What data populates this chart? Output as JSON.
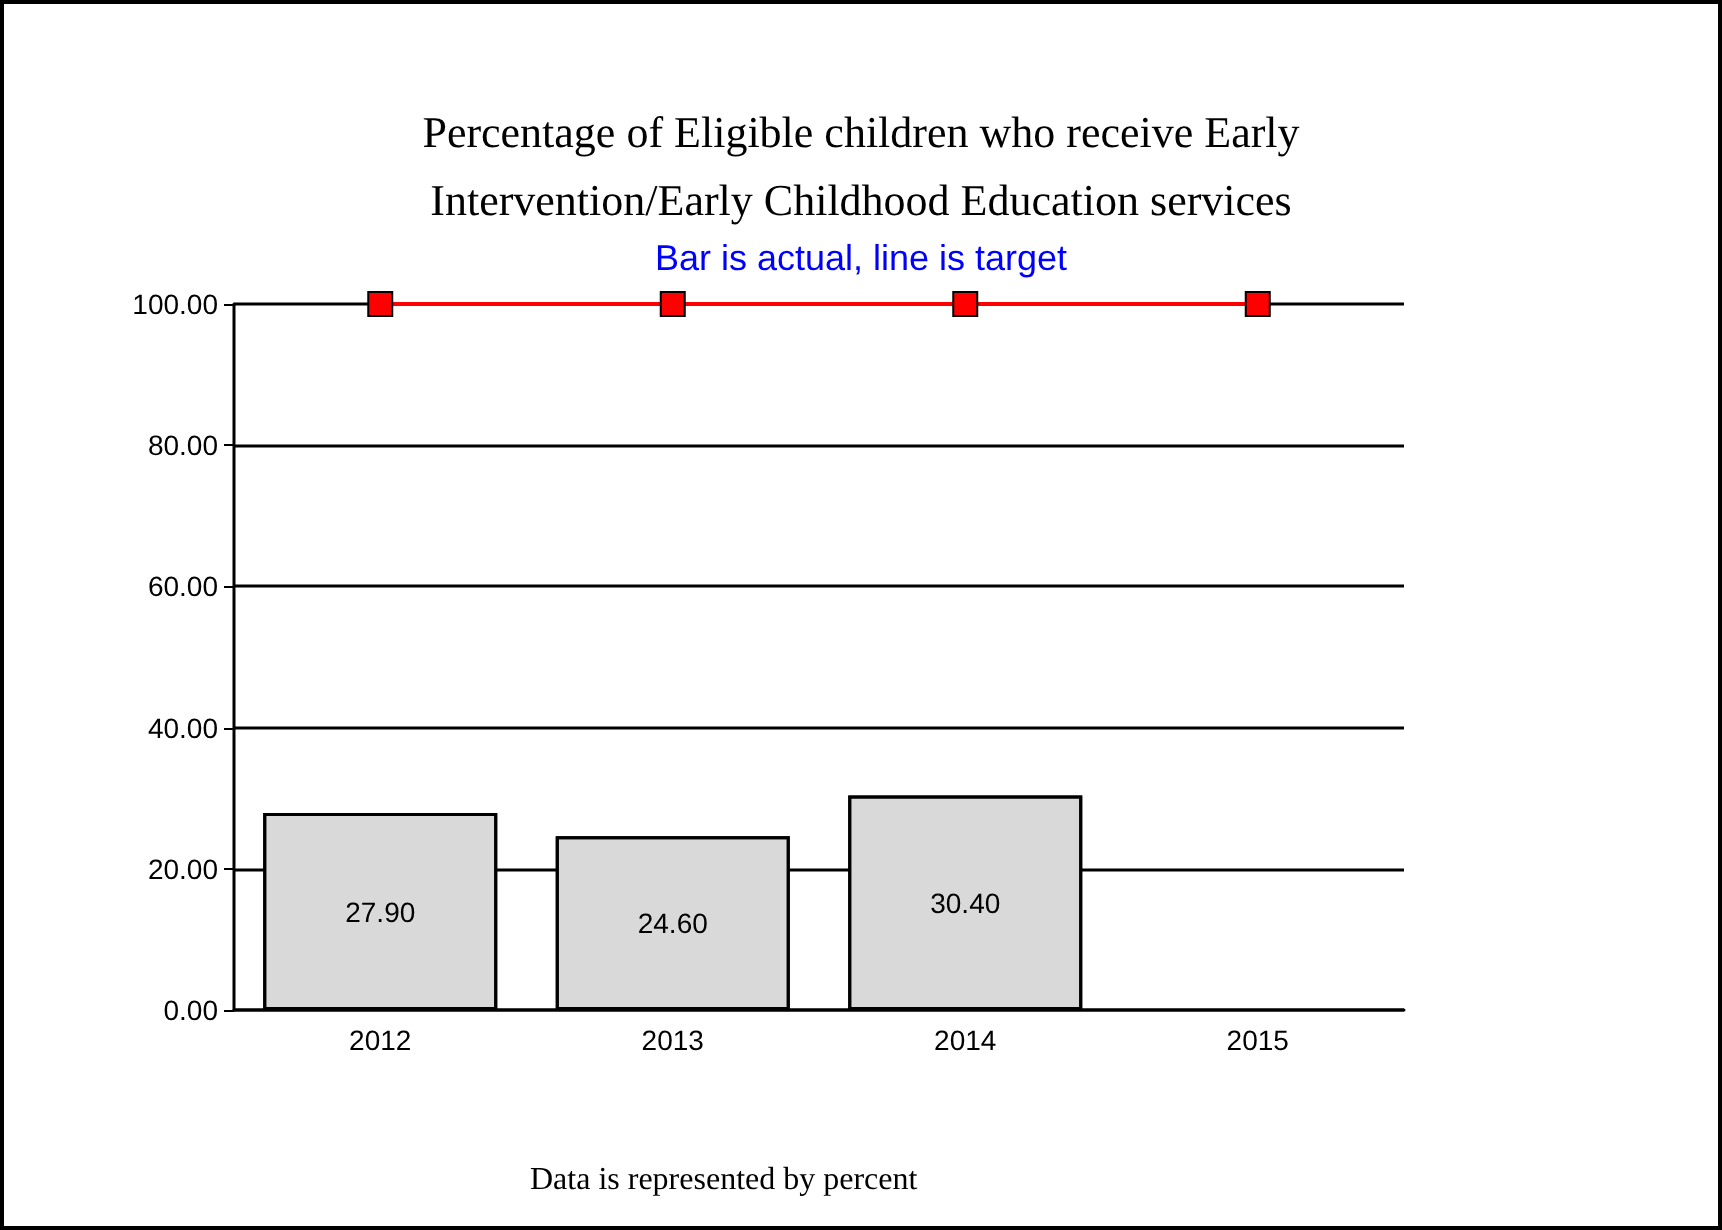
{
  "chart_data": {
    "type": "bar",
    "title": "Percentage of Eligible children who receive Early\nIntervention/Early Childhood Education services",
    "subtitle": "Bar is actual, line is target",
    "annotations": [
      "Data is represented by percent"
    ],
    "categories": [
      "2012",
      "2013",
      "2014",
      "2015"
    ],
    "series": [
      {
        "color": "#d9d9d9",
        "values": [
          27.9,
          24.6,
          30.4,
          null
        ],
        "value_labels": [
          "27.90",
          "24.60",
          "30.40",
          null
        ]
      },
      {
        "type": "line",
        "color": "#ff0000",
        "marker": "square",
        "values": [
          100,
          100,
          100,
          100
        ]
      }
    ],
    "ylim": [
      0,
      100
    ],
    "yticks": [
      {
        "value": 0,
        "label": "0.00"
      },
      {
        "value": 20,
        "label": "20.00"
      },
      {
        "value": 40,
        "label": "40.00"
      },
      {
        "value": 60,
        "label": "60.00"
      },
      {
        "value": 80,
        "label": "80.00"
      },
      {
        "value": 100,
        "label": "100.00"
      }
    ],
    "grid": "y"
  }
}
